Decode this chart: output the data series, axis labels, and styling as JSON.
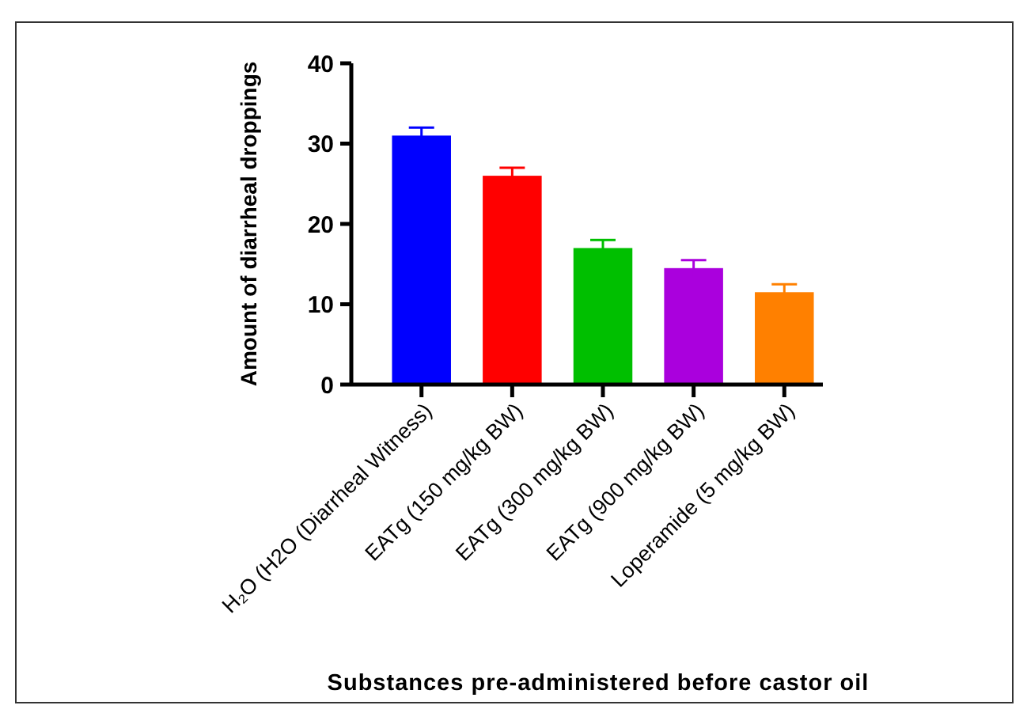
{
  "chart_data": {
    "type": "bar",
    "ylabel": "Amount of diarrheal droppings",
    "xlabel": "Substances pre-administered before castor oil",
    "categories": [
      "H₂O (H2O (Diarrheal Witness)",
      "EATg (150 mg/kg BW)",
      "EATg (300 mg/kg BW)",
      "EATg (900 mg/kg BW)",
      "Loperamide (5 mg/kg BW)"
    ],
    "values": [
      31,
      26,
      17,
      14.5,
      11.5
    ],
    "errors": [
      1,
      1,
      1,
      1,
      1
    ],
    "colors": [
      "#0000ff",
      "#ff0000",
      "#00bf00",
      "#aa00dd",
      "#ff8000"
    ],
    "ylim": [
      0,
      40
    ],
    "yticks": [
      0,
      10,
      20,
      30,
      40
    ]
  }
}
